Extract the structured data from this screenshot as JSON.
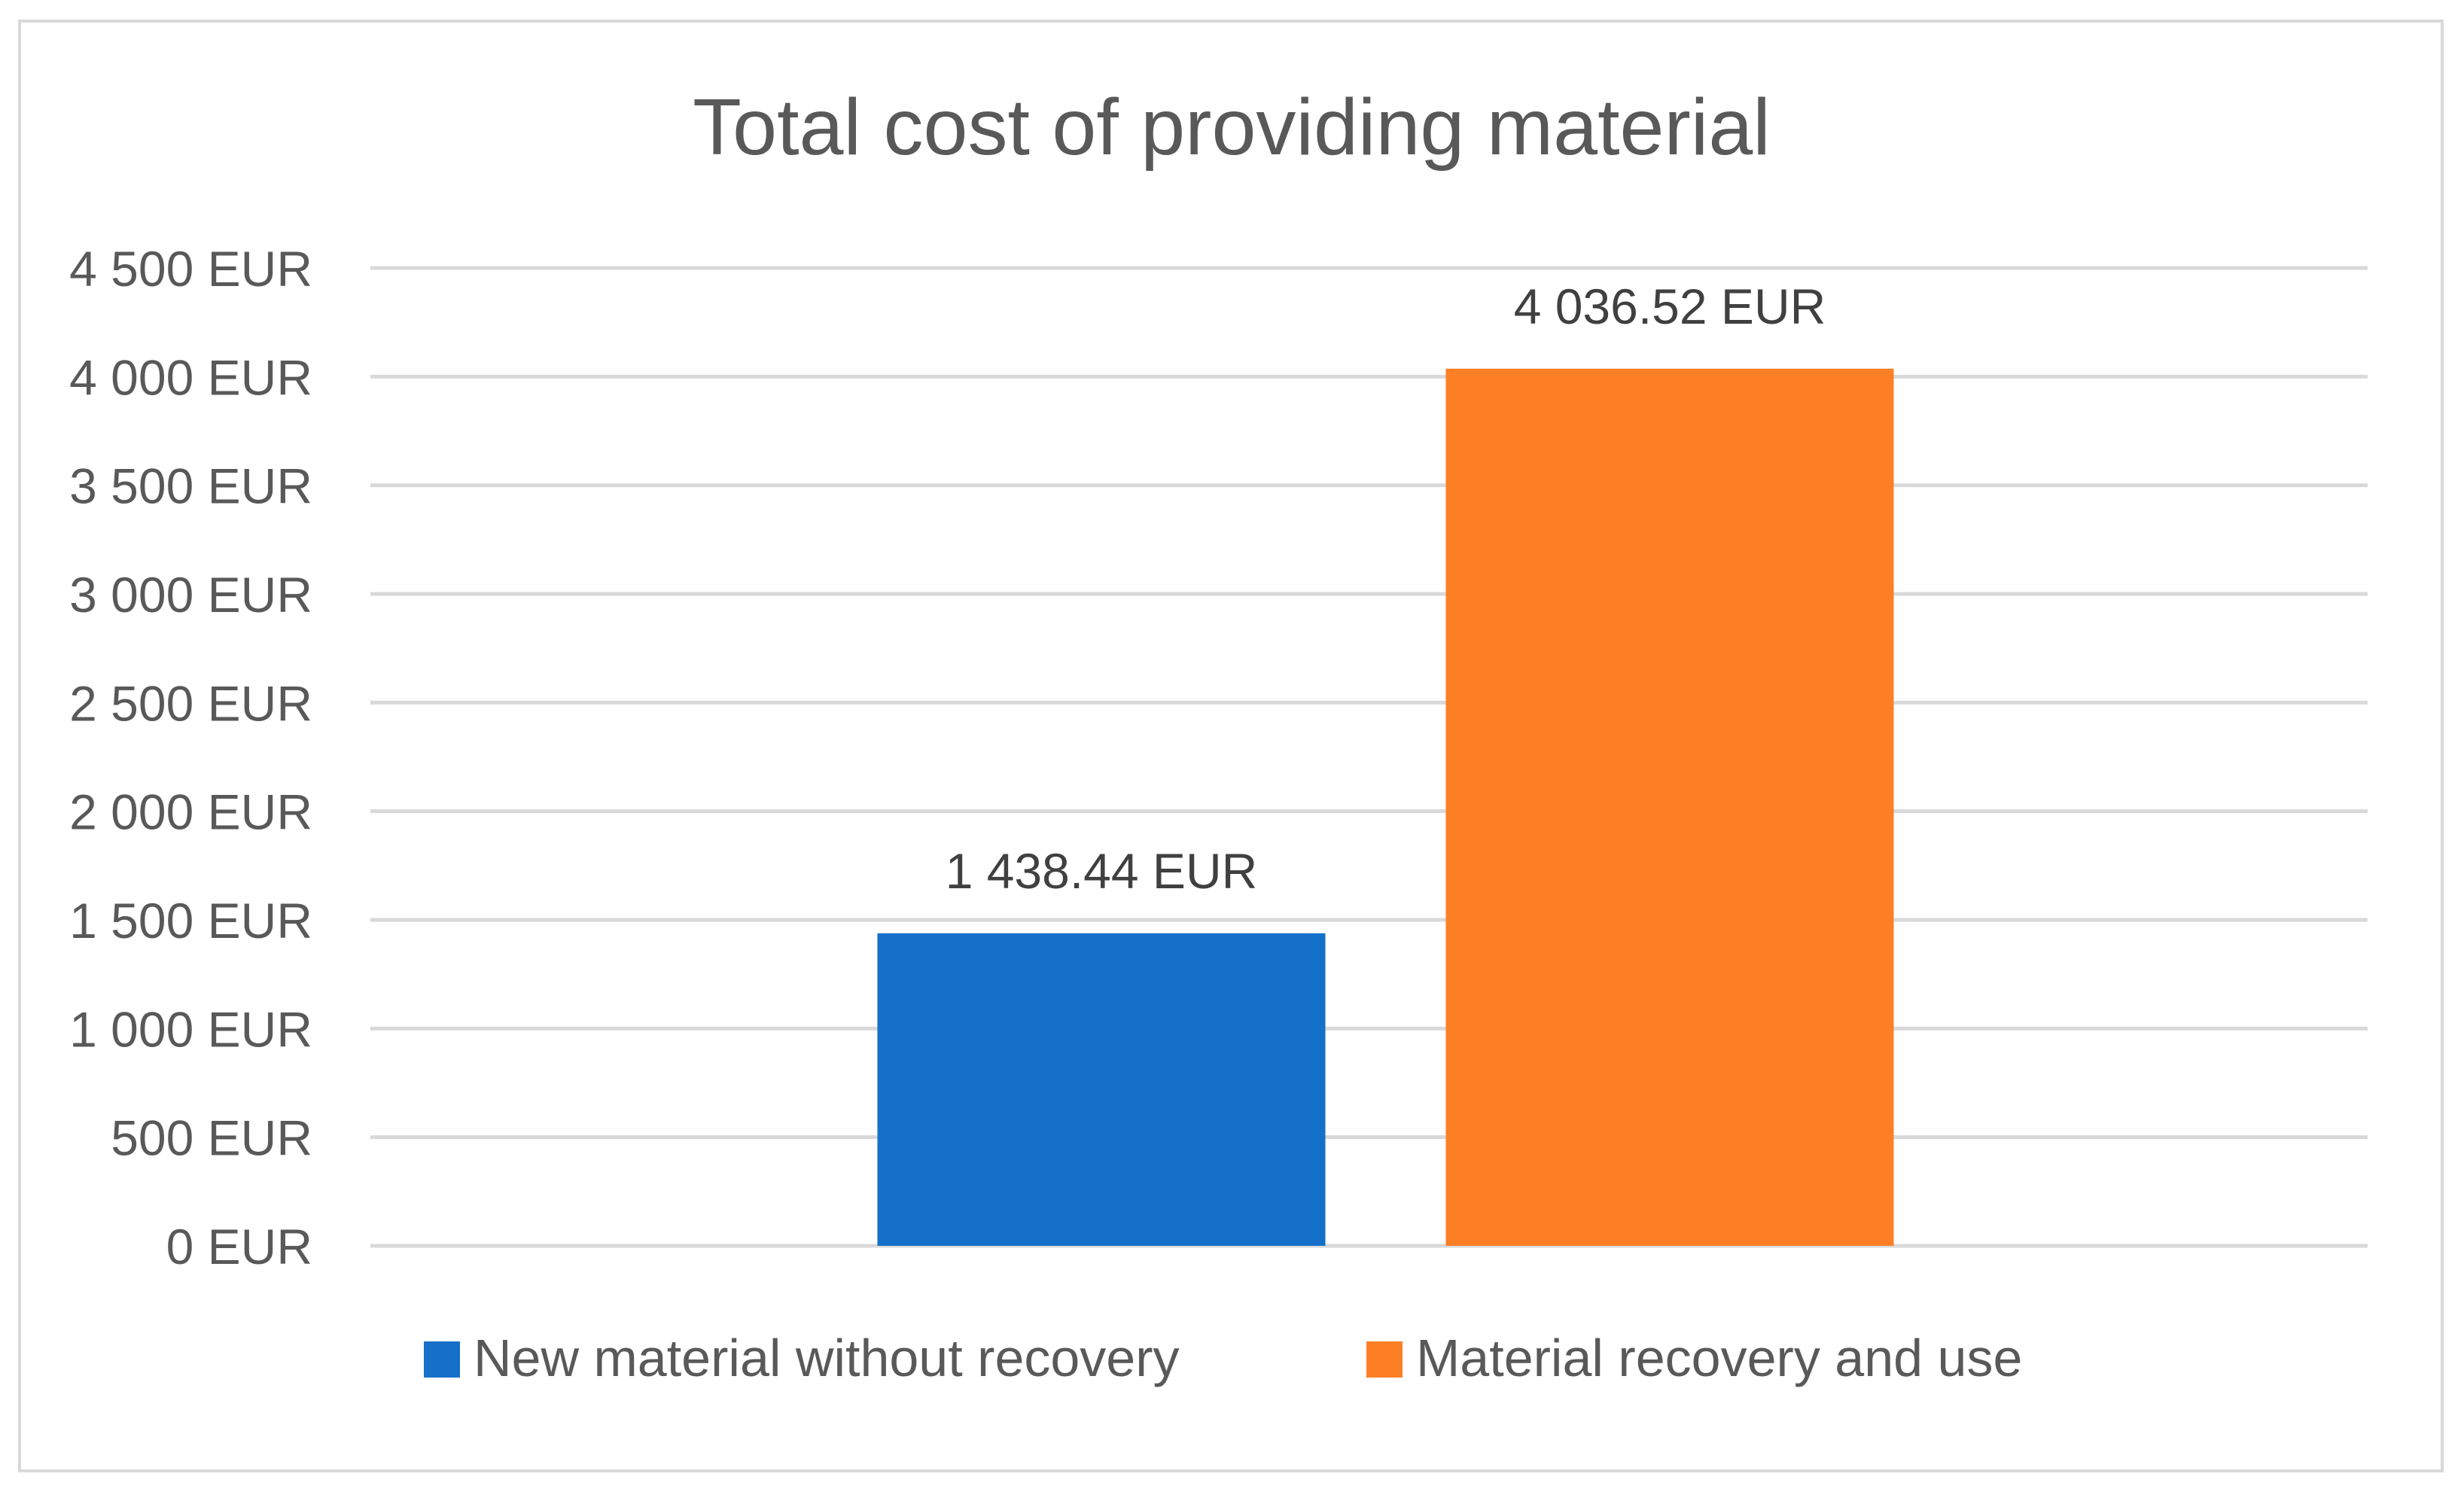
{
  "chart_data": {
    "type": "bar",
    "title": "Total cost of providing material",
    "xlabel": "",
    "ylabel": "",
    "ylim": [
      0,
      4500
    ],
    "yticks": [
      0,
      500,
      1000,
      1500,
      2000,
      2500,
      3000,
      3500,
      4000,
      4500
    ],
    "ytick_labels": [
      "0 EUR",
      "500 EUR",
      "1 000 EUR",
      "1 500 EUR",
      "2 000 EUR",
      "2 500 EUR",
      "3 000 EUR",
      "3 500 EUR",
      "4 000 EUR",
      "4 500 EUR"
    ],
    "grid": true,
    "legend_position": "bottom",
    "series": [
      {
        "name": "New material without recovery",
        "values": [
          1438.44
        ],
        "color": "#1470c8",
        "data_label": "1 438.44 EUR"
      },
      {
        "name": "Material recovery and use",
        "values": [
          4036.52
        ],
        "color": "#fd7f25",
        "data_label": "4 036.52 EUR"
      }
    ],
    "colors": {
      "gridline": "#d9d9d9",
      "text": "#595959",
      "frame": "#d9d9d9"
    }
  }
}
